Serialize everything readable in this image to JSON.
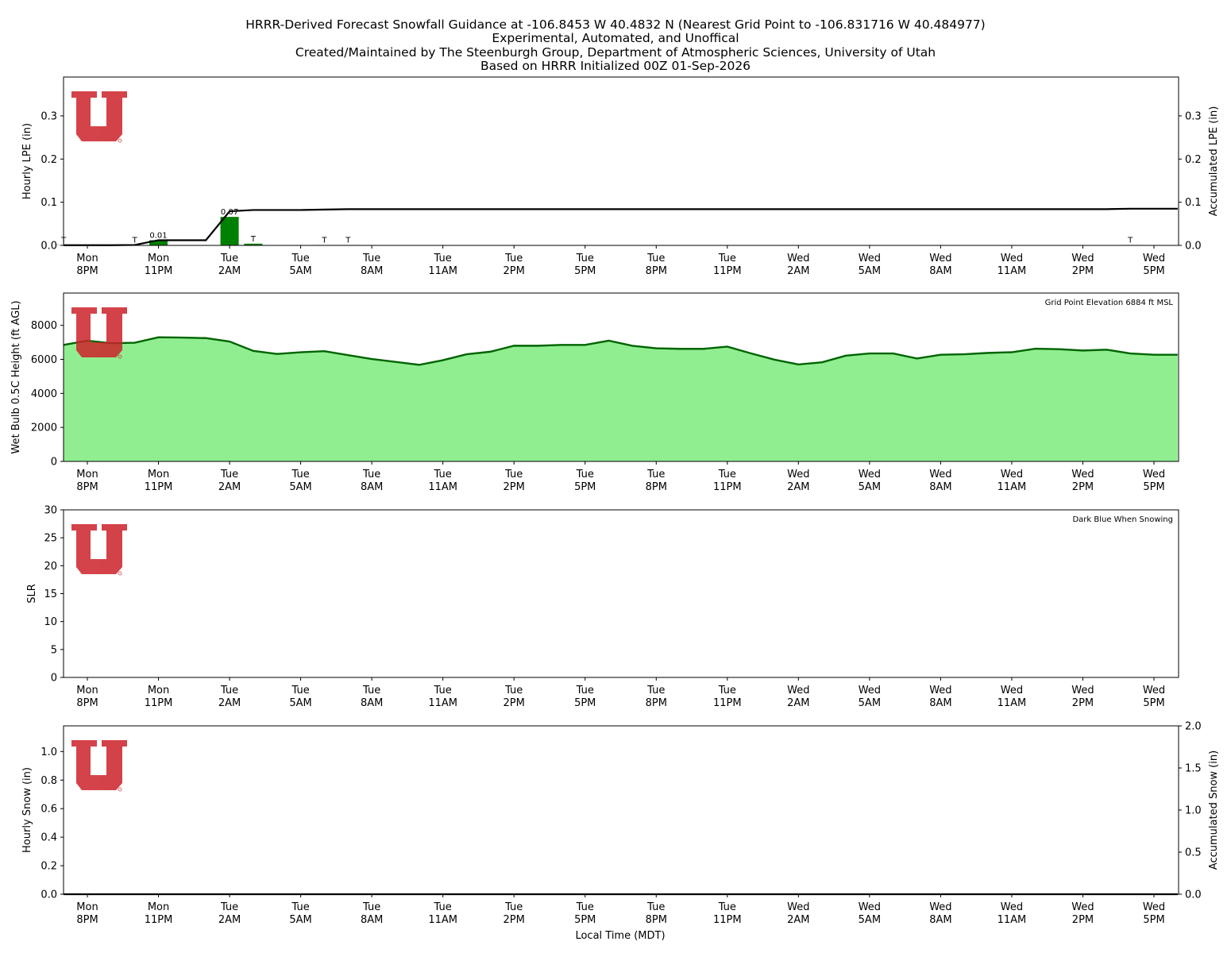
{
  "title_lines": [
    "HRRR-Derived Forecast Snowfall Guidance at -106.8453 W 40.4832 N (Nearest Grid Point to -106.831716 W 40.484977)",
    "Experimental, Automated, and Unoffical",
    "Created/Maintained by The Steenburgh Group, Department of Atmospheric Sciences, University of Utah",
    "Based on HRRR Initialized 00Z 01-Sep-2026"
  ],
  "x_axis": {
    "label": "Local Time (MDT)",
    "ticks": [
      {
        "day": "Mon",
        "time": "8PM"
      },
      {
        "day": "Mon",
        "time": "11PM"
      },
      {
        "day": "Tue",
        "time": "2AM"
      },
      {
        "day": "Tue",
        "time": "5AM"
      },
      {
        "day": "Tue",
        "time": "8AM"
      },
      {
        "day": "Tue",
        "time": "11AM"
      },
      {
        "day": "Tue",
        "time": "2PM"
      },
      {
        "day": "Tue",
        "time": "5PM"
      },
      {
        "day": "Tue",
        "time": "8PM"
      },
      {
        "day": "Tue",
        "time": "11PM"
      },
      {
        "day": "Wed",
        "time": "2AM"
      },
      {
        "day": "Wed",
        "time": "5AM"
      },
      {
        "day": "Wed",
        "time": "8AM"
      },
      {
        "day": "Wed",
        "time": "11AM"
      },
      {
        "day": "Wed",
        "time": "2PM"
      },
      {
        "day": "Wed",
        "time": "5PM"
      }
    ]
  },
  "colors": {
    "bar": "#008000",
    "accum_line": "#000000",
    "wetbulb_fill": "#90ee90",
    "wetbulb_line": "#006400",
    "logo": "#cc2229"
  },
  "chart_data": [
    {
      "type": "bar",
      "panel": "hourly-lpe",
      "ylabel": "Hourly LPE (in)",
      "ylabel_right": "Accumulated LPE (in)",
      "ylim": [
        0,
        0.39
      ],
      "ylim_right": [
        0,
        0.39
      ],
      "yticks": [
        "0.0",
        "0.1",
        "0.2",
        "0.3"
      ],
      "yticks_right": [
        "0.0",
        "0.1",
        "0.2",
        "0.3"
      ],
      "hours": [
        0,
        1,
        2,
        3,
        4,
        5,
        6,
        7,
        8,
        9,
        10,
        11,
        12,
        13,
        14,
        15,
        16,
        17,
        18,
        19,
        20,
        21,
        22,
        23,
        24,
        25,
        26,
        27,
        28,
        29,
        30,
        31,
        32,
        33,
        34,
        35,
        36,
        37,
        38,
        39,
        40,
        41,
        42,
        43,
        44,
        45,
        46,
        47
      ],
      "hourly_lpe": [
        0.0005,
        0,
        0,
        0.0005,
        0.012,
        0,
        0,
        0.066,
        0.004,
        0,
        0,
        0.001,
        0.001,
        0,
        0,
        0,
        0,
        0,
        0,
        0,
        0,
        0,
        0,
        0,
        0,
        0,
        0,
        0,
        0,
        0,
        0,
        0,
        0,
        0,
        0,
        0,
        0,
        0,
        0,
        0,
        0,
        0,
        0,
        0,
        0,
        0.001,
        0,
        0
      ],
      "accumulated_lpe": [
        0.0005,
        0.0005,
        0.0005,
        0.001,
        0.012,
        0.012,
        0.012,
        0.079,
        0.082,
        0.082,
        0.082,
        0.083,
        0.084,
        0.084,
        0.084,
        0.084,
        0.084,
        0.084,
        0.084,
        0.084,
        0.084,
        0.084,
        0.084,
        0.084,
        0.084,
        0.084,
        0.084,
        0.084,
        0.084,
        0.084,
        0.084,
        0.084,
        0.084,
        0.084,
        0.084,
        0.084,
        0.084,
        0.084,
        0.084,
        0.084,
        0.084,
        0.084,
        0.084,
        0.084,
        0.084,
        0.085,
        0.085,
        0.085
      ],
      "bar_labels": [
        {
          "hour": 0,
          "text": "T"
        },
        {
          "hour": 3,
          "text": "T"
        },
        {
          "hour": 4,
          "text": "0.01"
        },
        {
          "hour": 7,
          "text": "0.07"
        },
        {
          "hour": 8,
          "text": "T"
        },
        {
          "hour": 11,
          "text": "T"
        },
        {
          "hour": 12,
          "text": "T"
        },
        {
          "hour": 45,
          "text": "T"
        }
      ]
    },
    {
      "type": "area",
      "panel": "wet-bulb-height",
      "ylabel": "Wet Bulb 0.5C Height (ft AGL)",
      "ylim": [
        0,
        9900
      ],
      "yticks": [
        "0",
        "2000",
        "4000",
        "6000",
        "8000"
      ],
      "annotation": "Grid Point Elevation 6884 ft MSL",
      "hours": [
        0,
        1,
        2,
        3,
        4,
        5,
        6,
        7,
        8,
        9,
        10,
        11,
        12,
        13,
        14,
        15,
        16,
        17,
        18,
        19,
        20,
        21,
        22,
        23,
        24,
        25,
        26,
        27,
        28,
        29,
        30,
        31,
        32,
        33,
        34,
        35,
        36,
        37,
        38,
        39,
        40,
        41,
        42,
        43,
        44,
        45,
        46,
        47
      ],
      "values": [
        6850,
        7100,
        6950,
        6980,
        7300,
        7280,
        7250,
        7050,
        6500,
        6320,
        6420,
        6480,
        6250,
        6020,
        5850,
        5680,
        5950,
        6300,
        6450,
        6800,
        6800,
        6850,
        6850,
        7100,
        6800,
        6650,
        6620,
        6620,
        6750,
        6350,
        5980,
        5700,
        5830,
        6220,
        6350,
        6350,
        6050,
        6270,
        6300,
        6380,
        6420,
        6630,
        6600,
        6520,
        6570,
        6350,
        6270,
        6270
      ]
    },
    {
      "type": "bar",
      "panel": "slr",
      "ylabel": "SLR",
      "ylim": [
        0,
        30
      ],
      "yticks": [
        "0",
        "5",
        "10",
        "15",
        "20",
        "25",
        "30"
      ],
      "annotation": "Dark Blue When Snowing",
      "values": []
    },
    {
      "type": "bar",
      "panel": "hourly-snow",
      "ylabel": "Hourly Snow (in)",
      "ylabel_right": "Accumulated Snow (in)",
      "ylim": [
        0,
        1.18
      ],
      "ylim_right": [
        0,
        2.0
      ],
      "yticks": [
        "0.0",
        "0.2",
        "0.4",
        "0.6",
        "0.8",
        "1.0"
      ],
      "yticks_right": [
        "0.0",
        "0.5",
        "1.0",
        "1.5",
        "2.0"
      ],
      "hourly_snow": [],
      "accumulated_snow": [
        0,
        0,
        0,
        0,
        0,
        0,
        0,
        0,
        0,
        0,
        0,
        0,
        0,
        0,
        0,
        0,
        0,
        0,
        0,
        0,
        0,
        0,
        0,
        0,
        0,
        0,
        0,
        0,
        0,
        0,
        0,
        0,
        0,
        0,
        0,
        0,
        0,
        0,
        0,
        0,
        0,
        0,
        0,
        0,
        0,
        0,
        0,
        0
      ]
    }
  ]
}
